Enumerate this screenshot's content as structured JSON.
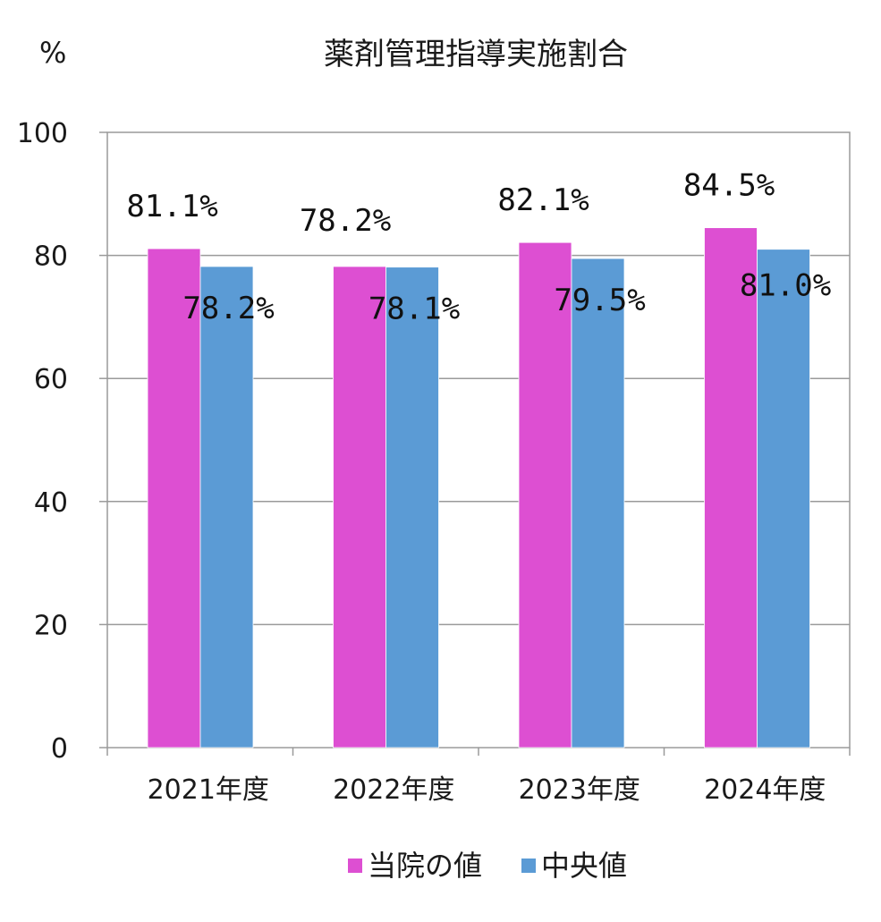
{
  "chart_data": {
    "type": "bar",
    "title": "薬剤管理指導実施割合",
    "ylabel": "%",
    "xlabel": "",
    "categories": [
      "2021年度",
      "2022年度",
      "2023年度",
      "2024年度"
    ],
    "ylim": [
      0,
      100
    ],
    "yticks": [
      0,
      20,
      40,
      60,
      80,
      100
    ],
    "grid": true,
    "legend_position": "bottom",
    "series": [
      {
        "name": "当院の値",
        "color": "#dd4fd2",
        "values": [
          81.1,
          78.2,
          82.1,
          84.5
        ],
        "labels": [
          "81.1%",
          "78.2%",
          "82.1%",
          "84.5%"
        ]
      },
      {
        "name": "中央値",
        "color": "#5b9bd5",
        "values": [
          78.2,
          78.1,
          79.5,
          81.0
        ],
        "labels": [
          "78.2%",
          "78.1%",
          "79.5%",
          "81.0%"
        ]
      }
    ]
  }
}
